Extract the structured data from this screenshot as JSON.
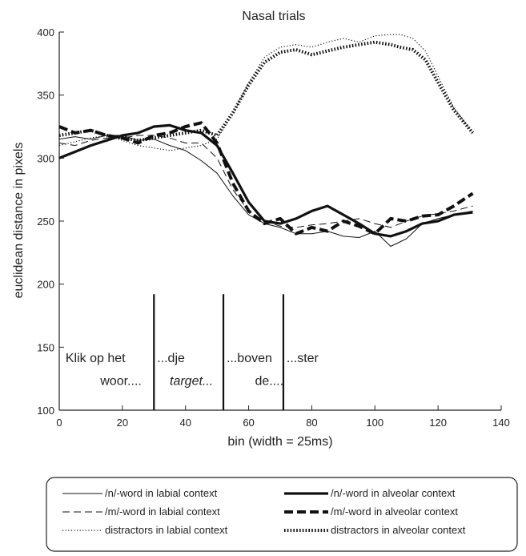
{
  "chart_data": {
    "type": "line",
    "title": "Nasal trials",
    "xlabel": "bin (width = 25ms)",
    "ylabel": "euclidean distance in pixels",
    "xlim": [
      0,
      140
    ],
    "ylim": [
      100,
      400
    ],
    "xticks": [
      0,
      20,
      40,
      60,
      80,
      100,
      120,
      140
    ],
    "yticks": [
      100,
      150,
      200,
      250,
      300,
      350,
      400
    ],
    "grid": false,
    "legend_position": "bottom",
    "series": [
      {
        "name": "/n/-word in labial context",
        "style": "solid-thin",
        "x": [
          0,
          5,
          10,
          15,
          20,
          25,
          30,
          35,
          40,
          45,
          50,
          55,
          60,
          65,
          70,
          75,
          80,
          85,
          90,
          95,
          100,
          105,
          110,
          115,
          120,
          125,
          131
        ],
        "y": [
          315,
          317,
          315,
          318,
          318,
          314,
          315,
          310,
          306,
          298,
          288,
          270,
          255,
          248,
          245,
          240,
          240,
          242,
          238,
          237,
          242,
          230,
          236,
          248,
          252,
          255,
          258
        ]
      },
      {
        "name": "/m/-word in labial context",
        "style": "dashed-thin",
        "x": [
          0,
          5,
          10,
          15,
          20,
          25,
          30,
          35,
          40,
          45,
          50,
          55,
          60,
          65,
          70,
          75,
          80,
          85,
          90,
          95,
          100,
          105,
          110,
          115,
          120,
          125,
          131
        ],
        "y": [
          312,
          310,
          314,
          316,
          316,
          318,
          318,
          316,
          312,
          312,
          300,
          275,
          258,
          250,
          246,
          245,
          247,
          248,
          250,
          252,
          248,
          245,
          250,
          254,
          256,
          258,
          262
        ]
      },
      {
        "name": "distractors in labial context",
        "style": "dotted-thin",
        "x": [
          0,
          5,
          10,
          15,
          20,
          25,
          30,
          35,
          40,
          45,
          50,
          55,
          60,
          65,
          70,
          75,
          80,
          85,
          90,
          95,
          100,
          105,
          108,
          112,
          116,
          120,
          125,
          131
        ],
        "y": [
          310,
          313,
          316,
          318,
          314,
          310,
          308,
          306,
          308,
          310,
          315,
          335,
          360,
          380,
          388,
          390,
          388,
          392,
          395,
          392,
          397,
          398,
          398,
          395,
          385,
          365,
          340,
          320
        ]
      },
      {
        "name": "/n/-word in alveolar context",
        "style": "solid-thick",
        "x": [
          0,
          5,
          10,
          15,
          20,
          25,
          30,
          35,
          40,
          45,
          50,
          55,
          60,
          65,
          70,
          75,
          80,
          85,
          90,
          95,
          100,
          105,
          110,
          115,
          120,
          125,
          131
        ],
        "y": [
          300,
          305,
          310,
          314,
          318,
          320,
          325,
          326,
          322,
          320,
          310,
          288,
          265,
          250,
          248,
          252,
          258,
          262,
          255,
          248,
          240,
          238,
          242,
          248,
          250,
          255,
          257
        ]
      },
      {
        "name": "/m/-word in alveolar context",
        "style": "dashed-thick",
        "x": [
          0,
          5,
          10,
          15,
          20,
          25,
          30,
          35,
          40,
          45,
          50,
          55,
          60,
          65,
          70,
          75,
          80,
          85,
          90,
          95,
          100,
          105,
          110,
          115,
          120,
          125,
          131
        ],
        "y": [
          325,
          320,
          322,
          318,
          316,
          312,
          318,
          320,
          325,
          328,
          312,
          280,
          258,
          248,
          252,
          240,
          245,
          242,
          250,
          246,
          240,
          252,
          250,
          254,
          255,
          262,
          272
        ]
      },
      {
        "name": "distractors in alveolar context",
        "style": "dotted-thick",
        "x": [
          0,
          5,
          10,
          15,
          20,
          25,
          30,
          35,
          40,
          45,
          50,
          55,
          60,
          65,
          70,
          75,
          80,
          85,
          90,
          95,
          100,
          105,
          108,
          112,
          116,
          120,
          125,
          131
        ],
        "y": [
          318,
          320,
          322,
          318,
          316,
          314,
          316,
          318,
          320,
          322,
          318,
          336,
          358,
          376,
          384,
          386,
          382,
          385,
          388,
          390,
          392,
          390,
          388,
          386,
          378,
          360,
          338,
          320
        ]
      }
    ],
    "markers": [
      {
        "x": 30,
        "y_top": 192
      },
      {
        "x": 52,
        "y_top": 192
      },
      {
        "x": 71,
        "y_top": 192
      }
    ],
    "annotations": [
      {
        "text": "Klik op het",
        "x": 2,
        "y": 138,
        "italic": false
      },
      {
        "text": "woor....",
        "x": 13,
        "y": 120,
        "italic": false
      },
      {
        "text": "...dje",
        "x": 31,
        "y": 138,
        "italic": false
      },
      {
        "text": "target...",
        "x": 35,
        "y": 120,
        "italic": true
      },
      {
        "text": "...boven",
        "x": 53,
        "y": 138,
        "italic": false
      },
      {
        "text": "de....",
        "x": 62,
        "y": 120,
        "italic": false
      },
      {
        "text": "...ster",
        "x": 72,
        "y": 138,
        "italic": false
      }
    ]
  }
}
